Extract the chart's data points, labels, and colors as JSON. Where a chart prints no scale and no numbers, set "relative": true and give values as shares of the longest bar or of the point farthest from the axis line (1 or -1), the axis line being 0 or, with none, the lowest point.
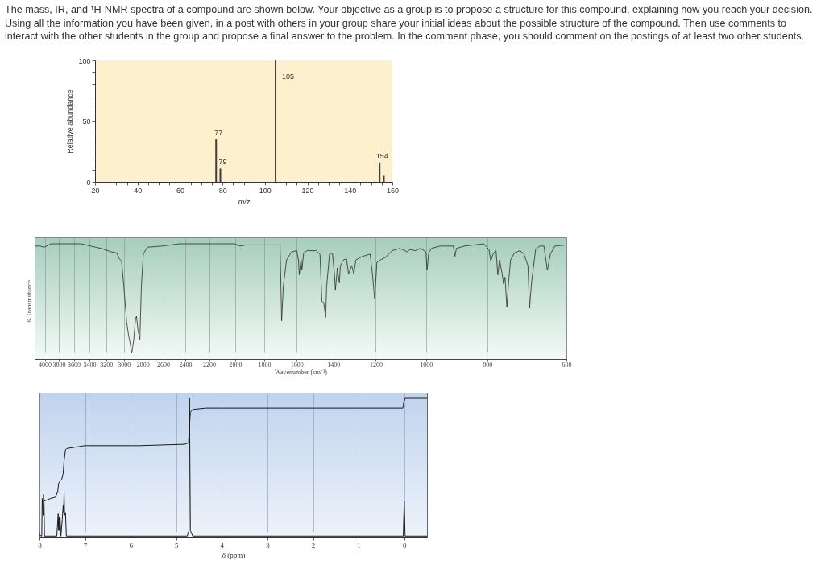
{
  "chart_data": [
    {
      "type": "other",
      "title": "The mass, IR, and ¹H-NMR spectra of a compound are shown below. Your objective as a group is to propose a structure for this compound, explaining how you reach your decision. Using all the information you have been given, in a post with others in your group share your initial ideas about the possible structure of the compound. Then use comments to interact with the other students in the group and propose a final answer to the problem. In the comment phase, you should comment on the postings of at least two other students."
    },
    {
      "type": "bar",
      "x": [
        77,
        79,
        105,
        154,
        156
      ],
      "values": [
        35,
        11,
        100,
        16,
        5
      ],
      "color": "#3d3d3d",
      "xlabel": "m/z",
      "ylabel": "Relative abundance",
      "xlim": [
        20,
        160
      ],
      "ylim": [
        0,
        100
      ],
      "xticks": [
        20,
        {
          "value": 25,
          "label": null
        },
        {
          "value": 30,
          "label": null
        },
        {
          "value": 35,
          "label": null
        },
        40,
        {
          "value": 45,
          "label": null
        },
        {
          "value": 50,
          "label": null
        },
        {
          "value": 55,
          "label": null
        },
        60,
        {
          "value": 65,
          "label": null
        },
        {
          "value": 70,
          "label": null
        },
        {
          "value": 75,
          "label": null
        },
        80,
        {
          "value": 85,
          "label": null
        },
        {
          "value": 90,
          "label": null
        },
        {
          "value": 95,
          "label": null
        },
        100,
        {
          "value": 105,
          "label": null
        },
        {
          "value": 110,
          "label": null
        },
        {
          "value": 115,
          "label": null
        },
        120,
        {
          "value": 125,
          "label": null
        },
        {
          "value": 130,
          "label": null
        },
        {
          "value": 135,
          "label": null
        },
        140,
        {
          "value": 145,
          "label": null
        },
        {
          "value": 150,
          "label": null
        },
        {
          "value": 155,
          "label": null
        },
        160
      ],
      "yticks": [
        0,
        {
          "value": 10,
          "label": null
        },
        {
          "value": 20,
          "label": null
        },
        {
          "value": 30,
          "label": null
        },
        {
          "value": 40,
          "label": null
        },
        50,
        {
          "value": 60,
          "label": null
        },
        {
          "value": 70,
          "label": null
        },
        {
          "value": 80,
          "label": null
        },
        {
          "value": 90,
          "label": null
        },
        100
      ],
      "annotations": [
        {
          "text": "77",
          "x": 77,
          "y": 35
        },
        {
          "text": "79",
          "x": 79,
          "y": 11
        },
        {
          "text": "105",
          "x": 105,
          "y": 100
        },
        {
          "text": "154",
          "x": 154,
          "y": 16
        }
      ]
    },
    {
      "type": "line",
      "relative": true,
      "log": "x",
      "xlim": [
        4150,
        600
      ],
      "xticks": [
        4000,
        3800,
        3600,
        3400,
        3200,
        3000,
        2800,
        2600,
        2400,
        2200,
        2000,
        1800,
        1600,
        1400,
        1200,
        1000,
        800,
        600
      ],
      "xlabel": "Wavenumber (cm⁻¹)",
      "ylabel": "% Transmittance",
      "grid": "x",
      "color": "#2b2b2b",
      "x": [
        4150,
        4070,
        4010,
        3910,
        3710,
        3505,
        3385,
        3260,
        3140,
        3080,
        3050,
        3025,
        3000,
        2970,
        2950,
        2935,
        2915,
        2895,
        2875,
        2865,
        2850,
        2830,
        2815,
        2795,
        2755,
        2615,
        2450,
        2210,
        2125,
        2005,
        1965,
        1925,
        1840,
        1720,
        1700,
        1690,
        1680,
        1660,
        1630,
        1600,
        1590,
        1585,
        1575,
        1570,
        1560,
        1540,
        1490,
        1470,
        1460,
        1450,
        1440,
        1435,
        1420,
        1405,
        1395,
        1390,
        1380,
        1370,
        1365,
        1350,
        1335,
        1325,
        1310,
        1300,
        1290,
        1260,
        1225,
        1215,
        1205,
        1195,
        1180,
        1160,
        1130,
        1100,
        1070,
        1060,
        1040,
        1020,
        1000,
        996,
        990,
        980,
        950,
        905,
        900,
        895,
        870,
        810,
        795,
        790,
        782,
        775,
        770,
        765,
        758,
        754,
        750,
        745,
        740,
        735,
        725,
        710,
        700,
        690,
        686,
        681,
        671,
        661,
        651,
        643,
        636,
        626,
        600
      ],
      "values": [
        0.98,
        0.98,
        0.97,
        1,
        1,
        1,
        0.98,
        0.96,
        0.93,
        0.92,
        0.87,
        0.85,
        0.63,
        0.32,
        0.21,
        0.15,
        0.05,
        0.16,
        0.35,
        0.37,
        0.25,
        0.17,
        0.63,
        0.91,
        0.97,
        0.98,
        1,
        1,
        1,
        1,
        0.98,
        0.99,
        0.99,
        0.99,
        0.99,
        0.33,
        0.63,
        0.86,
        0.93,
        0.94,
        0.86,
        0.73,
        0.87,
        0.77,
        0.92,
        0.94,
        0.94,
        0.91,
        0.5,
        0.49,
        0.36,
        0.63,
        0.91,
        0.92,
        0.74,
        0.6,
        0.79,
        0.66,
        0.81,
        0.86,
        0.87,
        0.74,
        0.81,
        0.74,
        0.86,
        0.89,
        0.91,
        0.74,
        0.52,
        0.84,
        0.86,
        0.88,
        0.94,
        0.96,
        0.93,
        0.95,
        0.94,
        0.96,
        0.93,
        0.77,
        0.92,
        0.96,
        0.98,
        0.98,
        0.89,
        0.96,
        0.98,
        1,
        0.95,
        0.85,
        0.92,
        0.94,
        0.73,
        0.86,
        0.74,
        0.65,
        0.71,
        0.45,
        0.68,
        0.86,
        0.92,
        0.94,
        0.91,
        0.81,
        0.44,
        0.67,
        0.95,
        0.98,
        0.98,
        0.77,
        0.91,
        0.98,
        0.99
      ]
    },
    {
      "type": "line",
      "relative": true,
      "xlim": [
        8,
        -0.5
      ],
      "xticks": [
        8,
        7,
        6,
        5,
        4,
        3,
        2,
        1,
        0
      ],
      "xlabel": "δ (ppm)",
      "grid": "x",
      "series": [
        {
          "color": "#1a1a1a",
          "x": [
            8,
            7.96,
            7.95,
            7.94,
            7.92,
            7.91,
            7.9,
            7.89,
            7.62,
            7.59,
            7.58,
            7.57,
            7.56,
            7.55,
            7.53,
            7.5,
            7.48,
            7.47,
            7.46,
            7.45,
            7.43,
            7.41,
            4.76,
            4.72,
            4.71,
            4.69,
            4.64,
            0.02,
            0,
            -0.02,
            -0.5
          ],
          "values": [
            0.02,
            0.01,
            0.01,
            0.28,
            0.16,
            0.31,
            0.24,
            0.01,
            0.01,
            0.17,
            0.05,
            0.15,
            0.05,
            0.16,
            0.01,
            0.13,
            0.23,
            0.18,
            0.33,
            0.16,
            0.18,
            0.01,
            0.01,
            0.05,
            1,
            0.05,
            0.01,
            0.01,
            0.26,
            0.01,
            0.01
          ]
        },
        {
          "color": "#1a1a1a",
          "x": [
            7.91,
            7.76,
            7.65,
            7.6,
            7.58,
            7.54,
            7.51,
            7.48,
            7.46,
            7.43,
            7.4,
            7,
            5.82,
            4.82,
            4.73,
            4.71,
            4.69,
            4.64,
            4.35,
            2.29,
            0.03,
            0.01,
            -0.02,
            -0.5
          ],
          "values": [
            0.26,
            0.28,
            0.29,
            0.33,
            0.39,
            0.41,
            0.42,
            0.46,
            0.55,
            0.63,
            0.64,
            0.66,
            0.66,
            0.67,
            0.68,
            0.8,
            0.9,
            0.92,
            0.93,
            0.93,
            0.93,
            0.97,
            1,
            1
          ]
        }
      ]
    }
  ]
}
